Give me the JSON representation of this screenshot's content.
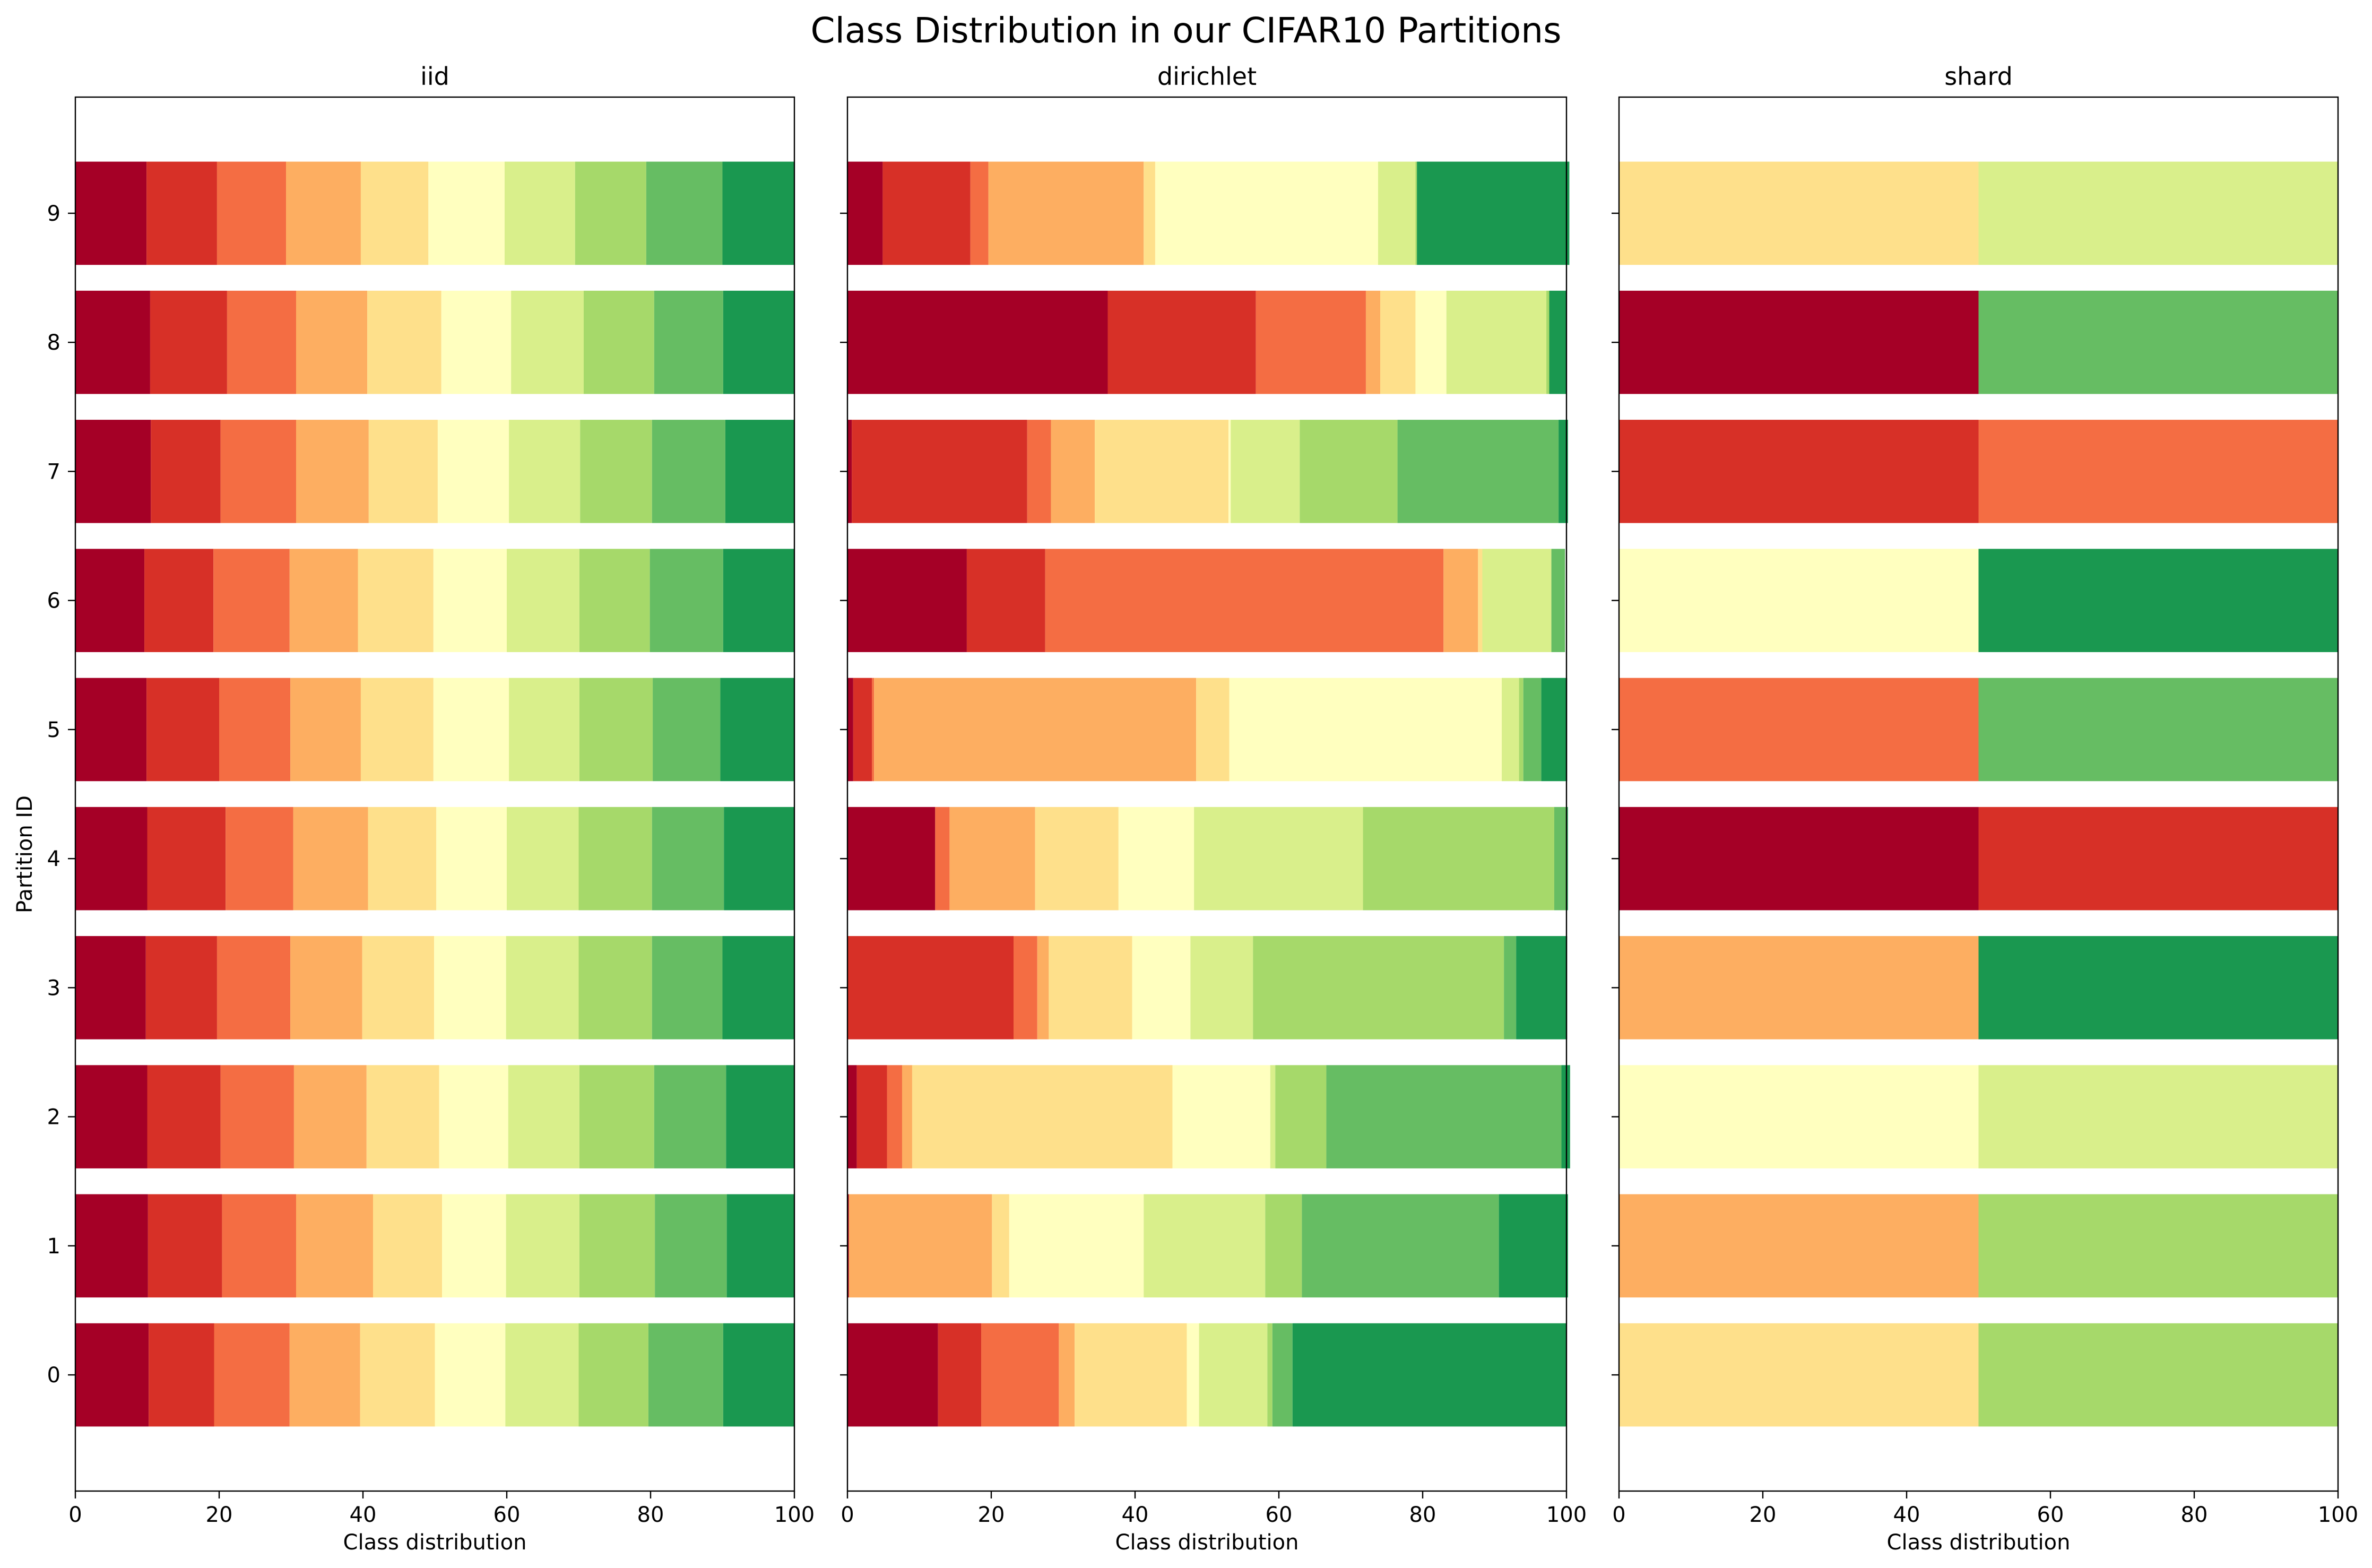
{
  "figure": {
    "title": "Class Distribution in our CIFAR10 Partitions"
  },
  "chart_data": {
    "type": "bar",
    "orientation": "horizontal",
    "stacked": true,
    "ylabel": "Partition ID",
    "xlabel": "Class distribution",
    "xlim": [
      0,
      100
    ],
    "xticks": [
      0,
      20,
      40,
      60,
      80,
      100
    ],
    "partitions": [
      0,
      1,
      2,
      3,
      4,
      5,
      6,
      7,
      8,
      9
    ],
    "class_colors": [
      "#a50026",
      "#d73027",
      "#f46d43",
      "#fdae61",
      "#fee08b",
      "#ffffbf",
      "#d9ef8b",
      "#a6d96a",
      "#66bd63",
      "#1a9850"
    ],
    "panels": [
      {
        "title": "iid",
        "rows": [
          [
            10.2,
            9.1,
            10.5,
            9.8,
            10.4,
            9.8,
            10.2,
            9.7,
            10.4,
            9.9
          ],
          [
            10.1,
            10.3,
            10.3,
            10.7,
            9.6,
            8.9,
            10.2,
            10.5,
            10.0,
            9.4
          ],
          [
            10.0,
            10.2,
            10.2,
            10.1,
            10.1,
            9.6,
            9.9,
            10.4,
            10.0,
            9.5
          ],
          [
            9.8,
            9.9,
            10.2,
            10.0,
            10.0,
            10.0,
            10.1,
            10.2,
            9.8,
            10.0
          ],
          [
            10.0,
            10.9,
            9.4,
            10.4,
            9.5,
            9.8,
            10.0,
            10.2,
            10.0,
            9.8
          ],
          [
            9.9,
            10.1,
            9.9,
            9.8,
            10.1,
            10.5,
            9.8,
            10.2,
            9.4,
            10.3
          ],
          [
            9.6,
            9.6,
            10.6,
            9.5,
            10.5,
            10.2,
            10.1,
            9.8,
            10.2,
            9.9
          ],
          [
            10.5,
            9.7,
            10.5,
            10.1,
            9.6,
            9.9,
            9.9,
            10.0,
            10.2,
            9.6
          ],
          [
            10.4,
            10.7,
            9.6,
            9.9,
            10.3,
            9.7,
            10.1,
            9.8,
            9.6,
            9.9
          ],
          [
            9.9,
            9.8,
            9.6,
            10.4,
            9.4,
            10.6,
            9.8,
            9.9,
            10.6,
            10.0
          ]
        ]
      },
      {
        "title": "dirichlet",
        "rows": [
          [
            12.6,
            6.0,
            10.8,
            2.2,
            15.6,
            1.7,
            9.5,
            0.7,
            2.8,
            38.1
          ],
          [
            0.2,
            0.0,
            0.0,
            19.9,
            2.4,
            18.7,
            16.9,
            5.1,
            27.4,
            9.6
          ],
          [
            1.3,
            4.2,
            2.1,
            1.4,
            36.2,
            13.6,
            0.7,
            7.1,
            32.7,
            1.2
          ],
          [
            0.0,
            23.1,
            3.3,
            1.6,
            11.6,
            8.1,
            8.7,
            34.9,
            1.7,
            7.1
          ],
          [
            12.2,
            0.0,
            2.0,
            11.9,
            11.6,
            10.5,
            23.5,
            26.6,
            1.8,
            0.1
          ],
          [
            0.8,
            2.6,
            0.3,
            44.8,
            4.6,
            37.9,
            2.4,
            0.6,
            2.5,
            3.6
          ],
          [
            16.6,
            10.9,
            55.4,
            4.8,
            0.6,
            0.0,
            9.6,
            0.0,
            1.9,
            0.0
          ],
          [
            0.6,
            24.4,
            3.3,
            6.1,
            18.6,
            0.3,
            9.6,
            13.6,
            22.4,
            1.3
          ],
          [
            36.2,
            20.6,
            15.3,
            2.0,
            4.9,
            4.3,
            13.9,
            0.4,
            0.0,
            2.4
          ],
          [
            4.9,
            12.2,
            2.5,
            21.6,
            1.6,
            31.0,
            5.2,
            0.2,
            0.0,
            21.2
          ]
        ]
      },
      {
        "title": "shard",
        "rows": [
          [
            0,
            0,
            0,
            0,
            50,
            0,
            0,
            50,
            0,
            0
          ],
          [
            0,
            0,
            0,
            50,
            0,
            0,
            0,
            50,
            0,
            0
          ],
          [
            0,
            0,
            0,
            0,
            0,
            50,
            50,
            0,
            0,
            0
          ],
          [
            0,
            0,
            0,
            50,
            0,
            0,
            0,
            0,
            0,
            50
          ],
          [
            50,
            50,
            0,
            0,
            0,
            0,
            0,
            0,
            0,
            0
          ],
          [
            0,
            0,
            50,
            0,
            0,
            0,
            0,
            0,
            50,
            0
          ],
          [
            0,
            0,
            0,
            0,
            0,
            50,
            0,
            0,
            0,
            50
          ],
          [
            0,
            50,
            50,
            0,
            0,
            0,
            0,
            0,
            0,
            0
          ],
          [
            50,
            0,
            0,
            0,
            0,
            0,
            0,
            0,
            50,
            0
          ],
          [
            0,
            0,
            0,
            0,
            50,
            0,
            50,
            0,
            0,
            0
          ]
        ]
      }
    ]
  }
}
